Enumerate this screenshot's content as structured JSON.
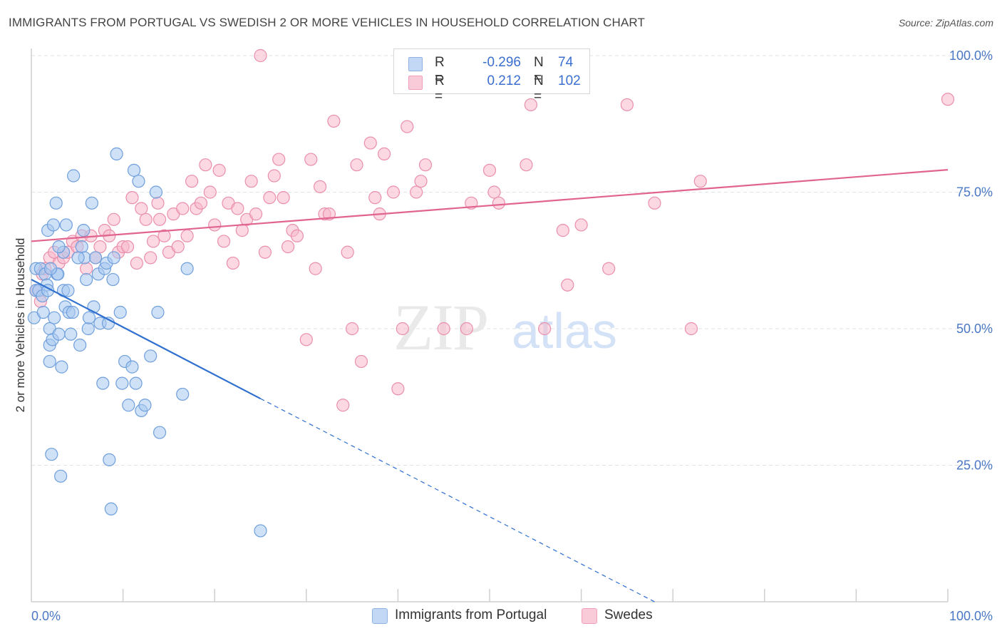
{
  "title": "IMMIGRANTS FROM PORTUGAL VS SWEDISH 2 OR MORE VEHICLES IN HOUSEHOLD CORRELATION CHART",
  "source": "Source: ZipAtlas.com",
  "watermark": {
    "zip": "ZIP",
    "atlas": "atlas"
  },
  "legend": {
    "series1": {
      "r_label": "R =",
      "r_value": "-0.296",
      "n_label": "N =",
      "n_value": "74"
    },
    "series2": {
      "r_label": "R =",
      "r_value": "0.212",
      "n_label": "N =",
      "n_value": "102"
    }
  },
  "colors": {
    "blue_fill": "#a8c8f0",
    "blue_stroke": "#6f9fdc",
    "blue_line": "#2f6fd0",
    "pink_fill": "#f7b8cb",
    "pink_stroke": "#ea8fab",
    "pink_line": "#e0648f",
    "tick_text": "#4a78c4"
  },
  "chart_data": {
    "type": "scatter",
    "xlabel": "",
    "ylabel": "2 or more Vehicles in Household",
    "xlim": [
      0,
      100
    ],
    "ylim": [
      0,
      100
    ],
    "x_tick_labels": [
      "0.0%",
      "100.0%"
    ],
    "y_ticks": [
      25,
      50,
      75,
      100
    ],
    "y_tick_labels": [
      "25.0%",
      "50.0%",
      "75.0%",
      "100.0%"
    ],
    "grid": true,
    "legend_position": "top-center",
    "series": [
      {
        "name": "Immigrants from Portugal",
        "color": "#a8c8f0",
        "trend": {
          "x0": 0,
          "y0": 59.0,
          "x1": 25,
          "y1": 37.2,
          "dash_to_x": 68,
          "dash_to_y": 0
        },
        "points": [
          [
            0.3,
            52
          ],
          [
            0.5,
            57
          ],
          [
            0.5,
            61
          ],
          [
            0.8,
            57
          ],
          [
            1,
            61
          ],
          [
            1.2,
            56
          ],
          [
            1.3,
            53
          ],
          [
            1.5,
            60
          ],
          [
            1.7,
            58
          ],
          [
            1.8,
            57
          ],
          [
            1.8,
            68
          ],
          [
            2,
            44
          ],
          [
            2,
            50
          ],
          [
            2,
            47
          ],
          [
            2.2,
            27
          ],
          [
            2.3,
            48
          ],
          [
            2.4,
            69
          ],
          [
            2.5,
            52
          ],
          [
            2.7,
            73
          ],
          [
            2.8,
            60
          ],
          [
            2.9,
            60
          ],
          [
            3,
            49
          ],
          [
            3.2,
            23
          ],
          [
            3.3,
            43
          ],
          [
            3.5,
            57
          ],
          [
            3.5,
            64
          ],
          [
            3.7,
            54
          ],
          [
            3.8,
            69
          ],
          [
            4,
            57
          ],
          [
            4.1,
            53
          ],
          [
            4.3,
            49
          ],
          [
            4.5,
            53
          ],
          [
            4.6,
            78
          ],
          [
            5.3,
            47
          ],
          [
            5.5,
            65
          ],
          [
            5.7,
            68
          ],
          [
            5.8,
            63
          ],
          [
            6,
            59
          ],
          [
            6.2,
            50
          ],
          [
            6.3,
            52
          ],
          [
            6.6,
            73
          ],
          [
            6.8,
            54
          ],
          [
            7,
            63
          ],
          [
            7.3,
            60
          ],
          [
            7.5,
            51
          ],
          [
            7.8,
            40
          ],
          [
            8,
            61
          ],
          [
            8.2,
            62
          ],
          [
            8.4,
            51
          ],
          [
            8.5,
            26
          ],
          [
            8.7,
            17
          ],
          [
            8.9,
            59
          ],
          [
            9,
            63
          ],
          [
            9.3,
            82
          ],
          [
            9.7,
            53
          ],
          [
            9.9,
            40
          ],
          [
            10.2,
            44
          ],
          [
            10.6,
            36
          ],
          [
            11,
            43
          ],
          [
            11.2,
            79
          ],
          [
            11.4,
            40
          ],
          [
            11.7,
            77
          ],
          [
            12,
            35
          ],
          [
            12.4,
            36
          ],
          [
            13,
            45
          ],
          [
            13.6,
            75
          ],
          [
            13.8,
            53
          ],
          [
            14,
            31
          ],
          [
            16.5,
            38
          ],
          [
            17,
            61
          ],
          [
            25,
            13
          ],
          [
            3,
            65
          ],
          [
            2.1,
            61
          ],
          [
            5.1,
            63
          ]
        ]
      },
      {
        "name": "Swedes",
        "color": "#f7b8cb",
        "trend": {
          "x0": 0,
          "y0": 66.0,
          "x1": 100,
          "y1": 79.1
        },
        "points": [
          [
            0.5,
            57
          ],
          [
            1,
            55
          ],
          [
            1.2,
            60
          ],
          [
            1.5,
            61
          ],
          [
            2,
            63
          ],
          [
            2.5,
            64
          ],
          [
            3,
            62
          ],
          [
            3.5,
            63
          ],
          [
            4,
            64
          ],
          [
            4.5,
            66
          ],
          [
            5,
            65
          ],
          [
            5.5,
            67
          ],
          [
            6,
            61
          ],
          [
            6.5,
            67
          ],
          [
            7,
            63
          ],
          [
            7.5,
            65
          ],
          [
            8,
            68
          ],
          [
            8.5,
            67
          ],
          [
            9,
            70
          ],
          [
            9.5,
            64
          ],
          [
            10,
            65
          ],
          [
            10.5,
            65
          ],
          [
            11,
            74
          ],
          [
            11.5,
            62
          ],
          [
            12,
            72
          ],
          [
            12.5,
            70
          ],
          [
            13,
            63
          ],
          [
            13.3,
            66
          ],
          [
            13.8,
            73
          ],
          [
            14,
            70
          ],
          [
            14.5,
            67
          ],
          [
            15,
            64
          ],
          [
            15.5,
            71
          ],
          [
            16,
            65
          ],
          [
            16.5,
            72
          ],
          [
            17,
            67
          ],
          [
            17.5,
            77
          ],
          [
            18,
            72
          ],
          [
            18.5,
            73
          ],
          [
            19,
            80
          ],
          [
            19.5,
            75
          ],
          [
            20,
            69
          ],
          [
            20.5,
            79
          ],
          [
            21,
            66
          ],
          [
            21.5,
            73
          ],
          [
            22,
            62
          ],
          [
            22.5,
            72
          ],
          [
            23,
            68
          ],
          [
            23.5,
            70
          ],
          [
            24,
            77
          ],
          [
            24.5,
            71
          ],
          [
            25,
            100
          ],
          [
            25.5,
            64
          ],
          [
            26,
            74
          ],
          [
            26.5,
            78
          ],
          [
            27,
            81
          ],
          [
            27.5,
            74
          ],
          [
            28,
            65
          ],
          [
            28.5,
            68
          ],
          [
            29,
            67
          ],
          [
            30,
            48
          ],
          [
            30.5,
            81
          ],
          [
            31,
            61
          ],
          [
            31.5,
            76
          ],
          [
            32,
            71
          ],
          [
            32.5,
            71
          ],
          [
            33,
            88
          ],
          [
            34,
            36
          ],
          [
            34.5,
            64
          ],
          [
            35,
            50
          ],
          [
            35.5,
            80
          ],
          [
            36,
            44
          ],
          [
            37,
            84
          ],
          [
            37.5,
            74
          ],
          [
            38,
            71
          ],
          [
            38.5,
            82
          ],
          [
            39.5,
            75
          ],
          [
            40,
            39
          ],
          [
            40.5,
            50
          ],
          [
            41,
            87
          ],
          [
            42,
            75
          ],
          [
            42.5,
            77
          ],
          [
            43,
            80
          ],
          [
            43.5,
            95
          ],
          [
            45,
            50
          ],
          [
            47.5,
            50
          ],
          [
            48,
            73
          ],
          [
            50,
            79
          ],
          [
            50.5,
            75
          ],
          [
            51,
            73
          ],
          [
            54,
            80
          ],
          [
            54.5,
            91
          ],
          [
            56,
            50
          ],
          [
            58,
            68
          ],
          [
            58.5,
            58
          ],
          [
            60,
            69
          ],
          [
            63,
            61
          ],
          [
            65,
            91
          ],
          [
            68,
            73
          ],
          [
            72,
            50
          ],
          [
            73,
            77
          ],
          [
            100,
            92
          ]
        ]
      }
    ]
  },
  "bottom_legend": {
    "item1": "Immigrants from Portugal",
    "item2": "Swedes"
  }
}
